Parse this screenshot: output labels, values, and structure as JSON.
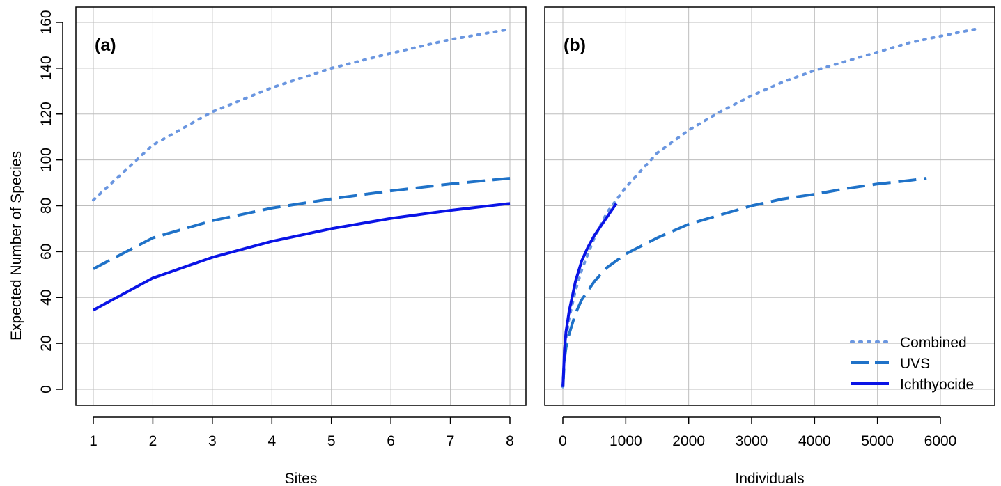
{
  "y_axis_label": "Expected Number of Species",
  "legend": {
    "placement": "bottom-right of panel b",
    "entries": [
      {
        "label": "Combined",
        "color": "#6a96e0",
        "dash": "dotted"
      },
      {
        "label": "UVS",
        "color": "#1f72c8",
        "dash": "dashed"
      },
      {
        "label": "Ichthyocide",
        "color": "#0a14e6",
        "dash": "solid"
      }
    ]
  },
  "chart_data": [
    {
      "type": "line",
      "panel": "(a)",
      "xlabel": "Sites",
      "ylabel": "Expected Number of Species",
      "xlim": [
        1,
        8
      ],
      "ylim": [
        0,
        160
      ],
      "grid": true,
      "x_ticks": [
        "1",
        "2",
        "3",
        "4",
        "5",
        "6",
        "7",
        "8"
      ],
      "y_ticks": [
        "0",
        "20",
        "40",
        "60",
        "80",
        "100",
        "120",
        "140",
        "160"
      ],
      "series": [
        {
          "name": "Combined",
          "x": [
            1,
            2,
            3,
            4,
            5,
            6,
            7,
            8
          ],
          "y": [
            82.5,
            106.5,
            121,
            131.5,
            140,
            146.5,
            152.5,
            157
          ]
        },
        {
          "name": "UVS",
          "x": [
            1,
            2,
            3,
            4,
            5,
            6,
            7,
            8
          ],
          "y": [
            52.5,
            66,
            73.5,
            79,
            83,
            86.5,
            89.5,
            92
          ]
        },
        {
          "name": "Ichthyocide",
          "x": [
            1,
            2,
            3,
            4,
            5,
            6,
            7,
            8
          ],
          "y": [
            34.5,
            48.5,
            57.5,
            64.5,
            70,
            74.5,
            78,
            81
          ]
        }
      ]
    },
    {
      "type": "line",
      "panel": "(b)",
      "xlabel": "Individuals",
      "xlim": [
        0,
        6600
      ],
      "ylim": [
        0,
        160
      ],
      "grid": true,
      "x_ticks": [
        "0",
        "1000",
        "2000",
        "3000",
        "4000",
        "5000",
        "6000"
      ],
      "y_ticks": [
        "0",
        "20",
        "40",
        "60",
        "80",
        "100",
        "120",
        "140",
        "160"
      ],
      "series": [
        {
          "name": "Combined",
          "x": [
            1,
            25,
            50,
            100,
            200,
            300,
            500,
            700,
            1000,
            1500,
            2000,
            2500,
            3000,
            3500,
            4000,
            4500,
            5000,
            5500,
            6000,
            6550
          ],
          "y": [
            1,
            15,
            22,
            31,
            43,
            52,
            66,
            77,
            88,
            103,
            113,
            121,
            128,
            134,
            139,
            143,
            147,
            151,
            154,
            157
          ]
        },
        {
          "name": "UVS",
          "x": [
            1,
            25,
            50,
            100,
            200,
            300,
            500,
            700,
            1000,
            1500,
            2000,
            2500,
            3000,
            3500,
            4000,
            4500,
            5000,
            5500,
            5780
          ],
          "y": [
            1,
            13,
            18,
            24,
            33,
            39,
            47,
            53,
            59,
            66,
            72,
            76,
            80,
            83,
            85,
            87.5,
            89.5,
            91,
            92
          ]
        },
        {
          "name": "Ichthyocide",
          "x": [
            1,
            25,
            50,
            100,
            200,
            300,
            400,
            500,
            600,
            700,
            800,
            850
          ],
          "y": [
            1,
            17,
            25,
            34,
            47,
            56,
            62,
            67,
            71,
            75,
            79,
            81
          ]
        }
      ]
    }
  ]
}
